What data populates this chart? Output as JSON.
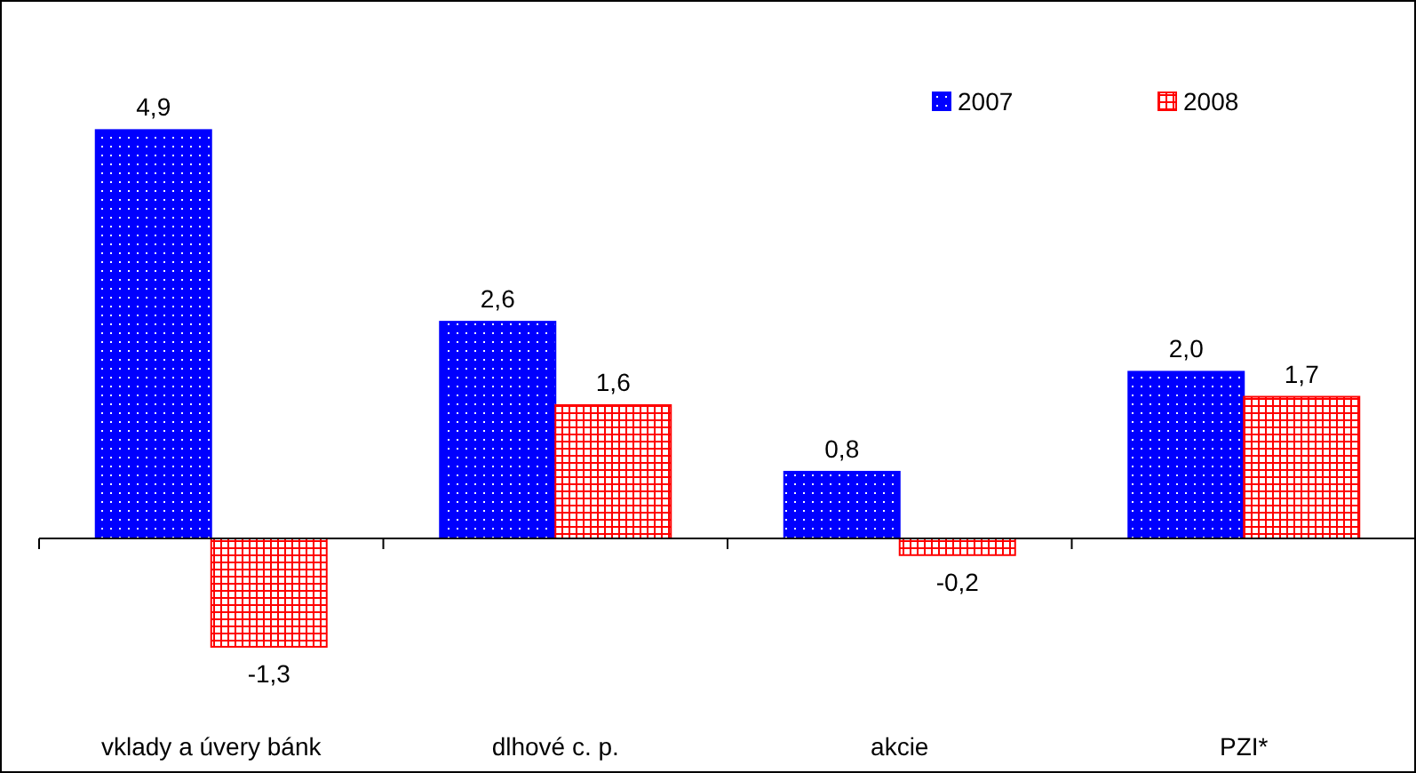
{
  "chart_data": {
    "type": "bar",
    "categories": [
      "vklady a úvery bánk",
      "dlhové c. p.",
      "akcie",
      "PZI*"
    ],
    "series": [
      {
        "name": "2007",
        "color": "#0000ff",
        "values": [
          4.9,
          2.6,
          0.8,
          2.0
        ],
        "value_labels": [
          "4,9",
          "2,6",
          "0,8",
          "2,0"
        ]
      },
      {
        "name": "2008",
        "color": "#ff0000",
        "values": [
          -1.3,
          1.6,
          -0.2,
          1.7
        ],
        "value_labels": [
          "-1,3",
          "1,6",
          "-0,2",
          "1,7"
        ]
      }
    ],
    "legend": "top right"
  }
}
